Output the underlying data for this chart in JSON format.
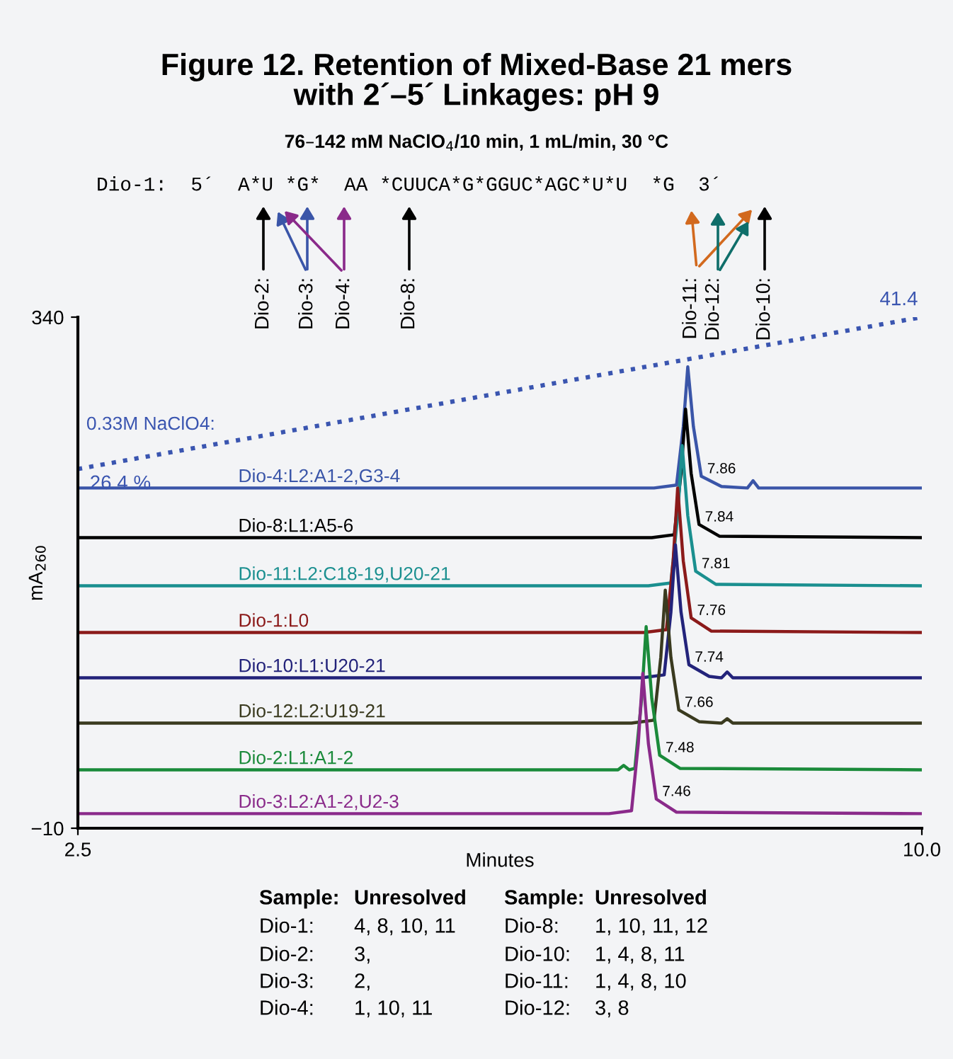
{
  "chart_data": {
    "type": "line",
    "title": "Figure 12. Retention of Mixed-Base 21 mers\nwith 2´–5´ Linkages: pH 9",
    "subtitle": "76–142 mM NaClO$_{4}$/10 min, 1 mL/min, 30 °C",
    "xlabel": "Minutes",
    "ylabel": "mA$_{260}$",
    "xlim": [
      2.5,
      10.0
    ],
    "ylim": [
      -10,
      340
    ],
    "xticks": [
      2.5,
      {
        "value": 10.0,
        "label": "10.0"
      }
    ],
    "yticks": [
      340,
      {
        "value": -10,
        "label": "−10"
      }
    ],
    "grid": false,
    "legend": false,
    "line_style": "solid",
    "marker": "none",
    "series": [
      {
        "name": "0.33M NaClO4:",
        "color": "#3a55b0",
        "type": "line",
        "line_style": "dotted",
        "x": [
          2.5,
          10.0
        ],
        "values": [
          236,
          340
        ]
      },
      {
        "name": "Dio-4:L2:A1-2,G3-4",
        "color": "#3a55a8",
        "x": [
          2.5,
          7.62,
          7.82,
          7.88,
          7.92,
          7.97,
          8.04,
          8.22,
          8.45,
          8.5,
          8.55,
          10.0
        ],
        "values": [
          223,
          223,
          225,
          265,
          306,
          265,
          231,
          224,
          223,
          228,
          223,
          223
        ]
      },
      {
        "name": "Dio-8:L1:A5-6",
        "color": "#000000",
        "x": [
          2.5,
          7.6,
          7.8,
          7.86,
          7.9,
          7.95,
          8.02,
          8.2,
          10.0
        ],
        "values": [
          189,
          189,
          191,
          233,
          277,
          233,
          198,
          190,
          189
        ]
      },
      {
        "name": "Dio-11:L2:C18-19,U20-21",
        "color": "#1a8f8f",
        "x": [
          2.5,
          7.57,
          7.77,
          7.83,
          7.87,
          7.92,
          7.99,
          8.17,
          10.0
        ],
        "values": [
          156,
          156,
          158,
          204,
          252,
          204,
          166,
          157,
          156
        ]
      },
      {
        "name": "Dio-1:L0",
        "color": "#8b1a1a",
        "x": [
          2.5,
          7.53,
          7.73,
          7.79,
          7.83,
          7.88,
          7.95,
          8.13,
          10.0
        ],
        "values": [
          124,
          124,
          126,
          173,
          223,
          173,
          134,
          125,
          124
        ]
      },
      {
        "name": "Dio-10:L1:U20-21",
        "color": "#23237a",
        "x": [
          2.5,
          7.51,
          7.71,
          7.77,
          7.81,
          7.86,
          7.93,
          8.11,
          8.22,
          8.27,
          8.32,
          10.0
        ],
        "values": [
          93,
          93,
          95,
          138,
          184,
          138,
          102,
          94,
          93,
          97,
          93,
          93
        ]
      },
      {
        "name": "Dio-12:L2:U19-21",
        "color": "#3a3a1f",
        "x": [
          2.5,
          7.42,
          7.62,
          7.68,
          7.72,
          7.77,
          7.84,
          8.02,
          8.22,
          8.27,
          8.32,
          10.0
        ],
        "values": [
          62,
          62,
          64,
          107,
          153,
          107,
          71,
          63,
          62,
          65,
          62,
          62
        ]
      },
      {
        "name": "Dio-2:L1:A1-2",
        "color": "#1a8a3a",
        "x": [
          2.5,
          7.3,
          7.35,
          7.4,
          7.45,
          7.51,
          7.55,
          7.6,
          7.67,
          7.85,
          10.0
        ],
        "values": [
          30,
          30,
          33,
          30,
          31,
          79,
          128,
          79,
          40,
          31,
          30
        ]
      },
      {
        "name": "Dio-3:L2:A1-2,U2-3",
        "color": "#8a2a8a",
        "x": [
          2.5,
          7.22,
          7.42,
          7.48,
          7.52,
          7.57,
          7.64,
          7.82,
          10.0
        ],
        "values": [
          0,
          0,
          2,
          48,
          96,
          48,
          10,
          1,
          0
        ]
      }
    ],
    "annotations": [
      "Dio-1:  5´  A*U *G*  AA *CUUCA*G*GGUC*AGC*U*U  *G  3´",
      "Dio-2:",
      "Dio-3:",
      "Dio-4:",
      "Dio-8:",
      "Dio-11:",
      "Dio-12:",
      "Dio-10:",
      {
        "text": "7.86",
        "x": 8.04,
        "y": 231
      },
      {
        "text": "7.84",
        "x": 8.02,
        "y": 198
      },
      {
        "text": "7.81",
        "x": 7.99,
        "y": 166
      },
      {
        "text": "7.76",
        "x": 7.95,
        "y": 134
      },
      {
        "text": "7.74",
        "x": 7.93,
        "y": 102
      },
      {
        "text": "7.66",
        "x": 7.84,
        "y": 71
      },
      {
        "text": "7.48",
        "x": 7.67,
        "y": 40
      },
      {
        "text": "7.46",
        "x": 7.64,
        "y": 10
      },
      {
        "text": "26.4 %",
        "x": 2.5,
        "y": 236
      },
      {
        "text": "41.4",
        "x": 10.0,
        "y": 340
      },
      "Sample:",
      "Unresolved",
      "Dio-1:",
      "4, 8, 10, 11",
      "Dio-2:",
      "3,",
      "Dio-3:",
      "2,",
      "Dio-4:",
      "1, 10, 11",
      "Sample:",
      "Unresolved",
      "Dio-8:",
      "1, 10, 11, 12",
      "Dio-10:",
      "1, 4, 8, 11",
      "Dio-11:",
      "1, 4, 8, 10",
      "Dio-12:",
      "3, 8"
    ]
  }
}
